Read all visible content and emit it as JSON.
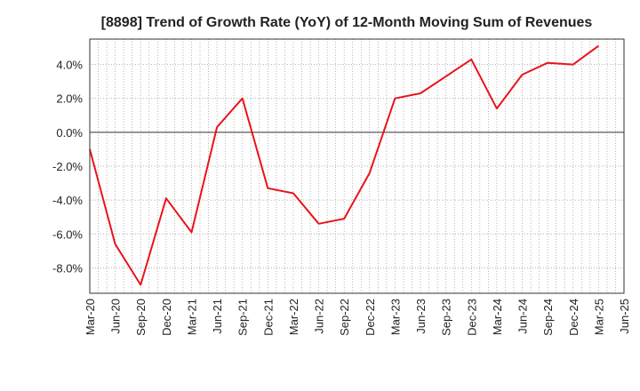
{
  "chart_data": {
    "type": "line",
    "title": "[8898]  Trend of Growth Rate (YoY) of 12-Month Moving Sum of Revenues",
    "xlabel": "",
    "ylabel": "",
    "x_tick_labels": [
      "Mar-20",
      "Jun-20",
      "Sep-20",
      "Dec-20",
      "Mar-21",
      "Jun-21",
      "Sep-21",
      "Dec-21",
      "Mar-22",
      "Jun-22",
      "Sep-22",
      "Dec-22",
      "Mar-23",
      "Jun-23",
      "Sep-23",
      "Dec-23",
      "Mar-24",
      "Jun-24",
      "Sep-24",
      "Dec-24",
      "Mar-25",
      "Jun-25"
    ],
    "y_ticks": [
      4.0,
      2.0,
      0.0,
      -2.0,
      -4.0,
      -6.0,
      -8.0
    ],
    "y_tick_labels": [
      "4.0%",
      "2.0%",
      "0.0%",
      "-2.0%",
      "-4.0%",
      "-6.0%",
      "-8.0%"
    ],
    "ylim": [
      -9.5,
      5.5
    ],
    "grid": true,
    "series": [
      {
        "color": "#e8141c",
        "x": [
          "Mar-20",
          "Jun-20",
          "Sep-20",
          "Dec-20",
          "Mar-21",
          "Jun-21",
          "Sep-21",
          "Dec-21",
          "Mar-22",
          "Jun-22",
          "Sep-22",
          "Dec-22",
          "Mar-23",
          "Jun-23",
          "Sep-23",
          "Dec-23",
          "Mar-24",
          "Jun-24",
          "Sep-24",
          "Dec-24",
          "Mar-25"
        ],
        "values": [
          -1.0,
          -6.6,
          -9.0,
          -3.9,
          -5.9,
          0.3,
          2.0,
          -3.3,
          -3.6,
          -5.4,
          -5.1,
          -2.4,
          2.0,
          2.3,
          3.3,
          4.3,
          1.4,
          3.4,
          4.1,
          4.0,
          5.1
        ]
      }
    ]
  }
}
